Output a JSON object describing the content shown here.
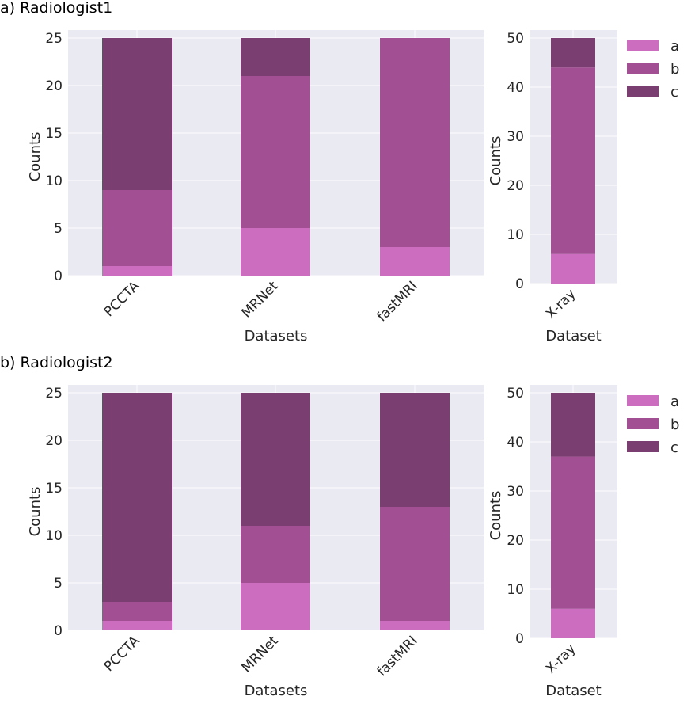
{
  "figure": {
    "colors": {
      "a": "#cd6dc0",
      "b": "#a34f94",
      "c": "#7a3e70",
      "plot_bg": "#eaeaf2"
    }
  },
  "chart_data": [
    {
      "panel_title": "a) Radiologist1",
      "type": "bar",
      "stacked": true,
      "categories": [
        "PCCTA",
        "MRNet",
        "fastMRI"
      ],
      "series": [
        {
          "name": "a",
          "values": [
            1,
            5,
            3
          ]
        },
        {
          "name": "b",
          "values": [
            8,
            16,
            22
          ]
        },
        {
          "name": "c",
          "values": [
            16,
            4,
            0
          ]
        }
      ],
      "xlabel": "Datasets",
      "ylabel": "Counts",
      "ylim": [
        0,
        25
      ],
      "yticks": [
        0,
        5,
        10,
        15,
        20,
        25
      ],
      "grid": true,
      "legend": "none"
    },
    {
      "type": "bar",
      "stacked": true,
      "categories": [
        "X-ray"
      ],
      "series": [
        {
          "name": "a",
          "values": [
            6
          ]
        },
        {
          "name": "b",
          "values": [
            38
          ]
        },
        {
          "name": "c",
          "values": [
            6
          ]
        }
      ],
      "xlabel": "Dataset",
      "ylabel": "Counts",
      "ylim": [
        0,
        50
      ],
      "yticks": [
        0,
        10,
        20,
        30,
        40,
        50
      ],
      "grid": true,
      "legend": "outside right, upper",
      "legend_entries": [
        "a",
        "b",
        "c"
      ]
    },
    {
      "panel_title": "b) Radiologist2",
      "type": "bar",
      "stacked": true,
      "categories": [
        "PCCTA",
        "MRNet",
        "fastMRI"
      ],
      "series": [
        {
          "name": "a",
          "values": [
            1,
            5,
            1
          ]
        },
        {
          "name": "b",
          "values": [
            2,
            6,
            12
          ]
        },
        {
          "name": "c",
          "values": [
            22,
            14,
            12
          ]
        }
      ],
      "xlabel": "Datasets",
      "ylabel": "Counts",
      "ylim": [
        0,
        25
      ],
      "yticks": [
        0,
        5,
        10,
        15,
        20,
        25
      ],
      "grid": true,
      "legend": "none"
    },
    {
      "type": "bar",
      "stacked": true,
      "categories": [
        "X-ray"
      ],
      "series": [
        {
          "name": "a",
          "values": [
            6
          ]
        },
        {
          "name": "b",
          "values": [
            31
          ]
        },
        {
          "name": "c",
          "values": [
            13
          ]
        }
      ],
      "xlabel": "Dataset",
      "ylabel": "Counts",
      "ylim": [
        0,
        50
      ],
      "yticks": [
        0,
        10,
        20,
        30,
        40,
        50
      ],
      "grid": true,
      "legend": "outside right, upper",
      "legend_entries": [
        "a",
        "b",
        "c"
      ]
    }
  ]
}
